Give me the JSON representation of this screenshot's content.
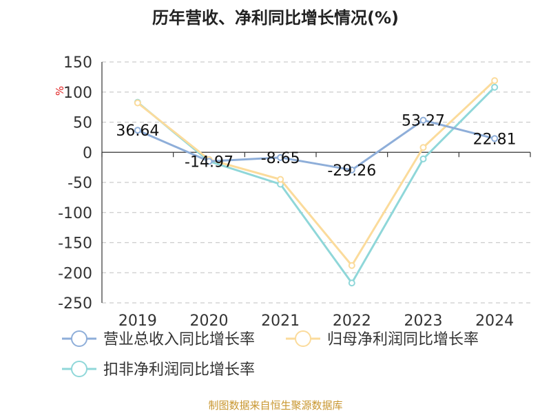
{
  "chart_data": {
    "type": "line",
    "title": "历年营收、净利同比增长情况(%)",
    "ylabel": "%",
    "xlabel": "",
    "categories": [
      "2019",
      "2020",
      "2021",
      "2022",
      "2023",
      "2024"
    ],
    "ylim": [
      -250,
      150
    ],
    "yticks": [
      150,
      100,
      50,
      0,
      -50,
      -100,
      -150,
      -200,
      -250
    ],
    "grid": true,
    "legend_position": "bottom-left",
    "series": [
      {
        "name": "营业总收入同比增长率",
        "color": "#8eaed9",
        "values": [
          36.64,
          -14.97,
          -8.65,
          -29.26,
          53.27,
          22.81
        ],
        "labels": [
          "36.64",
          "-14.97",
          "-8.65",
          "-29.26",
          "53.27",
          "22.81"
        ]
      },
      {
        "name": "归母净利润同比增长率",
        "color": "#fbdb9b",
        "values": [
          82,
          -12,
          -45,
          -188,
          8,
          119
        ]
      },
      {
        "name": "扣非净利润同比增长率",
        "color": "#8fd7d9",
        "values": [
          83,
          -15,
          -53,
          -217,
          -11,
          108
        ]
      }
    ]
  },
  "source": "制图数据来自恒生聚源数据库"
}
